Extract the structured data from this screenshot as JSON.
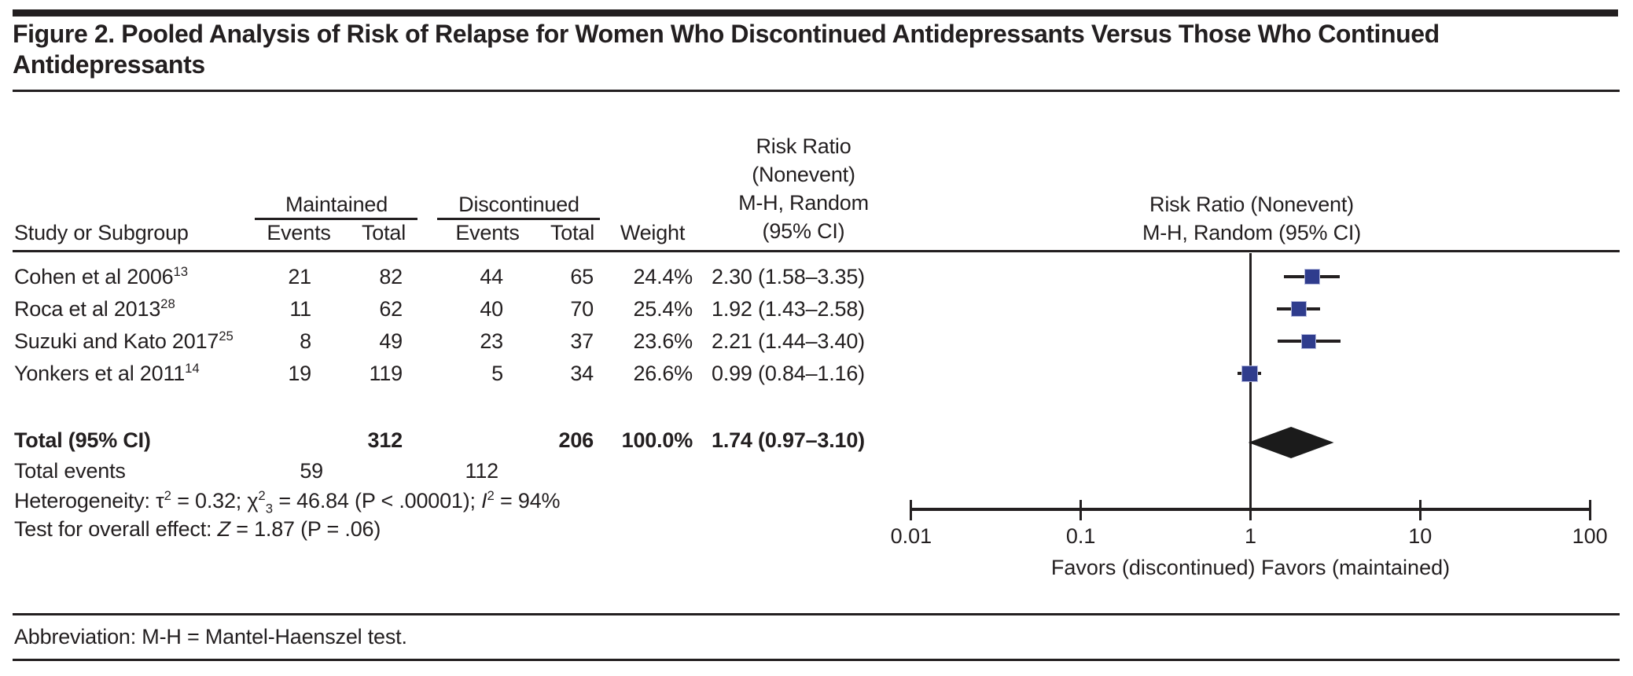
{
  "title": {
    "line1": "Figure 2. Pooled Analysis of Risk of Relapse for Women Who Discontinued Antidepressants Versus Those Who Continued",
    "line2": "Antidepressants"
  },
  "header": {
    "study": "Study or Subgroup",
    "maintained": "Maintained",
    "discontinued": "Discontinued",
    "m_events": "Events",
    "m_total": "Total",
    "d_events": "Events",
    "d_total": "Total",
    "weight": "Weight",
    "rr_col_line1": "Risk Ratio",
    "rr_col_line2": "(Nonevent)",
    "rr_col_line3": "M-H, Random",
    "rr_col_line4": "(95% CI)",
    "plot_col_line1": "Risk Ratio (Nonevent)",
    "plot_col_line2": "M-H, Random (95% CI)"
  },
  "table": {
    "rows": [
      {
        "study": "Cohen et al 2006",
        "ref": "13",
        "m_events": "21",
        "m_total": "82",
        "d_events": "44",
        "d_total": "65",
        "weight": "24.4%",
        "rr": "2.30 (1.58–3.35)"
      },
      {
        "study": "Roca et al 2013",
        "ref": "28",
        "m_events": "11",
        "m_total": "62",
        "d_events": "40",
        "d_total": "70",
        "weight": "25.4%",
        "rr": "1.92 (1.43–2.58)"
      },
      {
        "study": "Suzuki and Kato 2017",
        "ref": "25",
        "m_events": "8",
        "m_total": "49",
        "d_events": "23",
        "d_total": "37",
        "weight": "23.6%",
        "rr": "2.21 (1.44–3.40)"
      },
      {
        "study": "Yonkers et al 2011",
        "ref": "14",
        "m_events": "19",
        "m_total": "119",
        "d_events": "5",
        "d_total": "34",
        "weight": "26.6%",
        "rr": "0.99 (0.84–1.16)"
      }
    ],
    "total_row": {
      "label": "Total (95% CI)",
      "m_total": "312",
      "d_total": "206",
      "weight": "100.0%",
      "rr": "1.74 (0.97–3.10)"
    },
    "total_events": {
      "label": "Total events",
      "m": "59",
      "d": "112"
    }
  },
  "stats": {
    "heterogeneity": {
      "prefix": "Heterogeneity: τ",
      "tau_sup": "2",
      "seg1": " = 0.32; χ",
      "chi_sup": "2",
      "chi_sub": "3",
      "seg2": " = 46.84 (P < .00001); ",
      "i": "I",
      "i_sup": "2",
      "seg3": " = 94%"
    },
    "overall_test": {
      "prefix": "Test for overall effect: ",
      "z": "Z",
      "seg1": " = 1.87 (P = .06)"
    }
  },
  "footer": {
    "abbreviation": "Abbreviation: M-H = Mantel-Haenszel test."
  },
  "colors": {
    "text": "#231f20",
    "marker_fill": "#2f3c8d",
    "marker_edge": "#b3b8dd",
    "diamond_fill": "#1b1b1b",
    "line": "#231f20"
  },
  "chart_data": {
    "type": "forest",
    "x_scale": "log",
    "x_ticks": [
      0.01,
      0.1,
      1,
      10,
      100
    ],
    "x_tick_labels": [
      "0.01",
      "0.1",
      "1",
      "10",
      "100"
    ],
    "axis_label": "Favors (discontinued) Favors (maintained)",
    "null_line": 1,
    "series_header": "Risk Ratio (Nonevent) M-H, Random (95% CI)",
    "studies": [
      {
        "label": "Cohen et al 2006",
        "rr": 2.3,
        "ci_low": 1.58,
        "ci_high": 3.35,
        "weight_pct": 24.4
      },
      {
        "label": "Roca et al 2013",
        "rr": 1.92,
        "ci_low": 1.43,
        "ci_high": 2.58,
        "weight_pct": 25.4
      },
      {
        "label": "Suzuki and Kato 2017",
        "rr": 2.21,
        "ci_low": 1.44,
        "ci_high": 3.4,
        "weight_pct": 23.6
      },
      {
        "label": "Yonkers et al 2011",
        "rr": 0.99,
        "ci_low": 0.84,
        "ci_high": 1.16,
        "weight_pct": 26.6
      }
    ],
    "overall": {
      "label": "Total (95% CI)",
      "rr": 1.74,
      "ci_low": 0.97,
      "ci_high": 3.1,
      "weight_pct": 100.0
    }
  }
}
